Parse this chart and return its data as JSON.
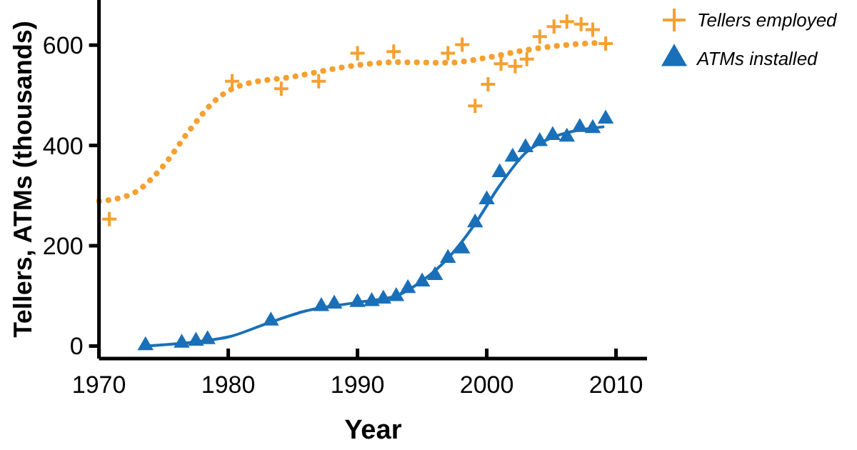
{
  "chart_data": {
    "type": "scatter",
    "xlabel": "Year",
    "ylabel": "Tellers, ATMs (thousands)",
    "xlim": [
      1970,
      2012.4
    ],
    "ylim": [
      -25,
      690
    ],
    "xticks": [
      1970,
      1980,
      1990,
      2000,
      2010
    ],
    "yticks": [
      0,
      200,
      400,
      600
    ],
    "grid": false,
    "legend": "top right",
    "series": [
      {
        "type": "line",
        "color": "#f5a030",
        "line_style": "dotted",
        "marker": "none",
        "x": [
          1970,
          1971,
          1973,
          1975,
          1977,
          1979,
          1981,
          1985,
          1990,
          1993,
          1997,
          2000,
          2003,
          2006,
          2009
        ],
        "values": [
          289,
          292,
          310,
          360,
          430,
          490,
          520,
          537,
          560,
          566,
          565,
          575,
          590,
          600,
          605
        ]
      },
      {
        "type": "line",
        "color": "#1a70b8",
        "line_style": "solid",
        "marker": "none",
        "x": [
          1973.6,
          1978,
          1980,
          1983,
          1986,
          1990,
          1993,
          1995,
          1997,
          1999,
          2001,
          2003,
          2005,
          2007,
          2009
        ],
        "values": [
          0,
          10,
          18,
          45,
          70,
          87,
          100,
          130,
          175,
          240,
          320,
          385,
          415,
          430,
          437
        ]
      },
      {
        "name": "Tellers employed",
        "color": "#f5a030",
        "marker": "cross",
        "x": [
          1970.8,
          1980.3,
          1984.1,
          1987,
          1990,
          1992.8,
          1997,
          1998.1,
          1999.1,
          2000.1,
          2001.1,
          2002.2,
          2003.1,
          2004.1,
          2005.2,
          2006.2,
          2007.3,
          2008.2,
          2009.2
        ],
        "values": [
          253,
          528,
          513,
          528,
          584,
          587,
          584,
          601,
          479,
          522,
          563,
          558,
          572,
          617,
          637,
          647,
          642,
          631,
          603
        ]
      },
      {
        "name": "ATMs installed",
        "color": "#1a70b8",
        "marker": "triangle",
        "x": [
          1973.6,
          1976.4,
          1977.5,
          1978.4,
          1983.3,
          1987.2,
          1988.2,
          1990,
          1991.1,
          1992,
          1993,
          1993.9,
          1995,
          1996,
          1997,
          1998.1,
          1999.1,
          2000,
          2001,
          2002,
          2003,
          2004.1,
          2005.1,
          2006.2,
          2007.2,
          2008.2,
          2009.2
        ],
        "values": [
          1,
          6,
          10,
          13,
          50,
          79,
          84,
          87,
          89,
          94,
          99,
          115,
          128,
          141,
          175,
          194,
          246,
          292,
          346,
          377,
          396,
          408,
          420,
          417,
          436,
          434,
          453
        ]
      }
    ]
  }
}
